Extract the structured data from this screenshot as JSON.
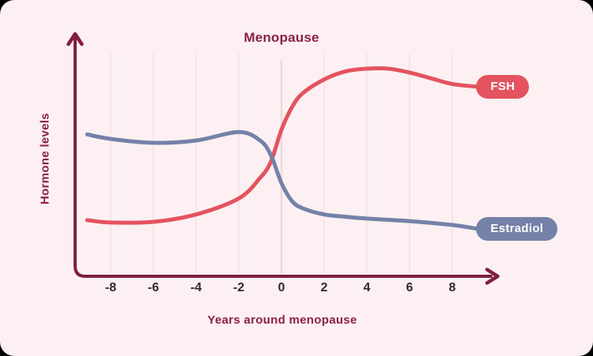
{
  "labels": {
    "title": "Menopause",
    "y_axis": "Hormone levels",
    "x_axis": "Years around menopause",
    "fsh_badge": "FSH",
    "estradiol_badge": "Estradiol"
  },
  "colors": {
    "page_background": "#000000",
    "card_background": "#fcf0f2",
    "axis": "#801f40",
    "heading_text": "#8b2143",
    "tick_text": "#2d2a33",
    "gridline": "#f7e4e7",
    "zero_line": "#e9d9dc",
    "fsh": "#e4535f",
    "estradiol": "#7481a8",
    "badge_text": "#ffffff"
  },
  "chart_data": {
    "type": "line",
    "title": "Menopause",
    "xlabel": "Years around menopause",
    "ylabel": "Hormone levels",
    "x_ticks": [
      -8,
      -6,
      -4,
      -2,
      0,
      2,
      4,
      6,
      8
    ],
    "xlim": [
      -9.5,
      10.2
    ],
    "ylim": [
      0,
      100
    ],
    "y_units": "relative hormone level (unlabeled qualitative axis, 0-100)",
    "grid": "faint vertical gridlines at every x tick; slightly stronger vertical marker line at x=0 below the Menopause title",
    "legend_position": "pill labels attached inline to the right end of each curve",
    "annotation_line_x": 0,
    "series": [
      {
        "name": "FSH",
        "color": "#e4535f",
        "x": [
          -9.1,
          -8,
          -6,
          -4,
          -2,
          -1,
          -0.5,
          0,
          0.5,
          1,
          2,
          3,
          4,
          5,
          6,
          7,
          8,
          9.2
        ],
        "levels": [
          24.5,
          23.5,
          23.8,
          27,
          34,
          43,
          50,
          64,
          74,
          80,
          86,
          89.5,
          90.7,
          90.7,
          89,
          86.5,
          84,
          82.8
        ]
      },
      {
        "name": "Estradiol",
        "color": "#7481a8",
        "x": [
          -9.1,
          -8,
          -6,
          -4,
          -2,
          -1,
          -0.5,
          0,
          0.5,
          1,
          2,
          3,
          4,
          6,
          8,
          9.2
        ],
        "levels": [
          62,
          60,
          58.3,
          59.3,
          63,
          59.3,
          53,
          40.7,
          32.8,
          29.7,
          27,
          26,
          25.2,
          24.1,
          22.4,
          20.7
        ]
      }
    ]
  }
}
